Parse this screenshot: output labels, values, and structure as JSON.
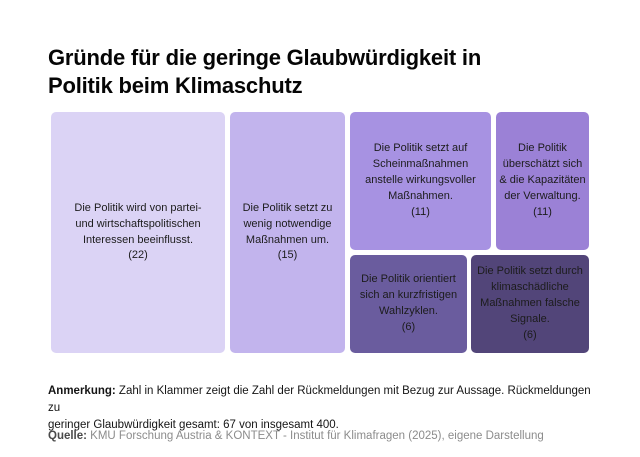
{
  "header": {
    "title": "Gründe für die geringe Glaubwürdigkeit in\nPolitik beim Klimaschutz"
  },
  "chart_data": {
    "type": "treemap",
    "title": "Gründe für die geringe Glaubwürdigkeit in Politik beim Klimaschutz",
    "unit": "Anzahl der Rückmeldungen",
    "total": "67 von insgesamt 400",
    "items": [
      {
        "label": "Die Politik wird von partei- und wirtschaftspolitischen Interessen beeinflusst.",
        "value": 22,
        "display": "Die Politik wird von partei-\nund wirtschaftspolitischen\nInteressen beeinflusst.",
        "count_label": "(22)",
        "color": "#dbd3f5"
      },
      {
        "label": "Die Politik setzt zu wenig notwendige Maßnahmen um.",
        "value": 15,
        "display": "Die Politik setzt zu\nwenig notwendige\nMaßnahmen um.",
        "count_label": "(15)",
        "color": "#c2b4ed"
      },
      {
        "label": "Die Politik setzt auf Scheinmaßnahmen anstelle wirkungsvoller Maßnahmen.",
        "value": 11,
        "display": "Die Politik setzt auf\nScheinmaßnahmen\nanstelle wirkungsvoller\nMaßnahmen.",
        "count_label": "(11)",
        "color": "#a792e2"
      },
      {
        "label": "Die Politik überschätzt sich & die Kapazitäten der Verwaltung.",
        "value": 11,
        "display": "Die Politik\nüberschätzt sich\n& die Kapazitäten\nder Verwaltung.",
        "count_label": "(11)",
        "color": "#9b81d6"
      },
      {
        "label": "Die Politik orientiert sich an kurzfristigen Wahlzyklen.",
        "value": 6,
        "display": "Die Politik orientiert\nsich an kurzfristigen\nWahlzyklen.",
        "count_label": "(6)",
        "color": "#6a5c9e"
      },
      {
        "label": "Die Politik setzt durch klimaschädliche Maßnahmen falsche Signale.",
        "value": 6,
        "display": "Die Politik setzt durch\nklimaschädliche\nMaßnahmen falsche\nSignale.",
        "count_label": "(6)",
        "color": "#524579"
      }
    ]
  },
  "footer": {
    "note_prefix": "Anmerkung:",
    "note_text": " Zahl in Klammer zeigt die Zahl der Rückmeldungen mit Bezug zur Aussage. Rückmeldungen zu\ngeringer Glaubwürdigkeit gesamt: 67 von insgesamt 400.",
    "source_prefix": "Quelle:",
    "source_text": " KMU Forschung Austria & KONTEXT - Institut für Klimafragen (2025), eigene Darstellung"
  }
}
